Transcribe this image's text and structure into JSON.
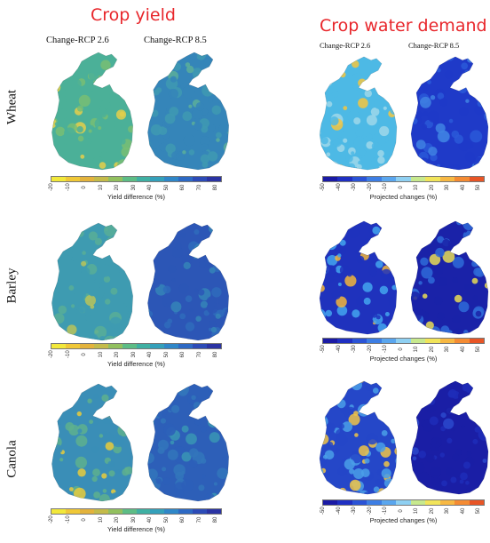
{
  "sections": {
    "yield": {
      "title": "Crop yield"
    },
    "water": {
      "title": "Crop water demand"
    }
  },
  "columns": {
    "rcp26": "Change-RCP 2.6",
    "rcp85": "Change-RCP 8.5"
  },
  "rows": [
    "Wheat",
    "Barley",
    "Canola"
  ],
  "colorbars": {
    "yield": {
      "label": "Yield difference (%)",
      "ticks": [
        "-20",
        "-10",
        "0",
        "10",
        "20",
        "30",
        "40",
        "50",
        "60",
        "70",
        "80"
      ],
      "colors": [
        "#f2e83a",
        "#f0c837",
        "#e3b33c",
        "#c4bb4a",
        "#92c05f",
        "#5dbd86",
        "#3fb0a3",
        "#34a0ba",
        "#2f87c8",
        "#2d69c4",
        "#2c4bb7",
        "#2a33a3"
      ]
    },
    "demand": {
      "label": "Projected changes (%)",
      "ticks": [
        "-50",
        "-40",
        "-30",
        "-20",
        "-10",
        "0",
        "10",
        "20",
        "30",
        "40",
        "50"
      ],
      "colors": [
        "#1a1aa5",
        "#1f2fc2",
        "#2a53d6",
        "#3d7ee4",
        "#5aa6ee",
        "#8fd0f2",
        "#c7e98e",
        "#f1e45a",
        "#f7b843",
        "#f48b33",
        "#e85526"
      ]
    }
  },
  "panel_colors": {
    "wheat_yield_26": {
      "base": "#4bb098",
      "hi": "#e4cf4a",
      "mid": "#78be73"
    },
    "wheat_yield_85": {
      "base": "#3585b9",
      "hi": "#5aae9a",
      "mid": "#3e99b2"
    },
    "barley_yield_26": {
      "base": "#3e9bb1",
      "hi": "#b8c35a",
      "mid": "#58ae98"
    },
    "barley_yield_85": {
      "base": "#2c56b6",
      "hi": "#3584b9",
      "mid": "#2f6bbc"
    },
    "canola_yield_26": {
      "base": "#3a8eb7",
      "hi": "#e8cb3c",
      "mid": "#5eb08e"
    },
    "canola_yield_85": {
      "base": "#2d5fb8",
      "hi": "#3a95b4",
      "mid": "#3376bb"
    },
    "wheat_demand_26": {
      "base": "#4db9e5",
      "hi": "#f3c541",
      "mid": "#9fd7ea"
    },
    "wheat_demand_85": {
      "base": "#1f3ac8",
      "hi": "#3f83e3",
      "mid": "#2a59d8"
    },
    "barley_demand_26": {
      "base": "#1f32bd",
      "hi": "#f2b53b",
      "mid": "#43a5ee"
    },
    "barley_demand_85": {
      "base": "#1a22a8",
      "hi": "#e9dc55",
      "mid": "#2f6ad8"
    },
    "canola_demand_26": {
      "base": "#2547c8",
      "hi": "#f0c447",
      "mid": "#4a9fe8"
    },
    "canola_demand_85": {
      "base": "#1a1ea5",
      "hi": "#2b49cc",
      "mid": "#1f2db8"
    }
  }
}
